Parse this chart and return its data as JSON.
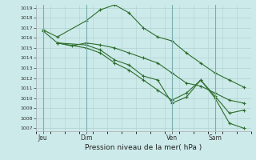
{
  "background_color": "#cdeaea",
  "grid_color": "#b0d0d0",
  "line_color": "#2d6e2d",
  "title": "Pression niveau de la mer( hPa )",
  "ylim": [
    1007,
    1019
  ],
  "yticks": [
    1007,
    1008,
    1009,
    1010,
    1011,
    1012,
    1013,
    1014,
    1015,
    1016,
    1017,
    1018,
    1019
  ],
  "xtick_labels": [
    "Jeu",
    "Dim",
    "Ven",
    "Sam"
  ],
  "xtick_positions": [
    0,
    24,
    72,
    96
  ],
  "xlim": [
    -4,
    116
  ],
  "series1_x": [
    0,
    8,
    24,
    32,
    40,
    48,
    56,
    64,
    72,
    80,
    88,
    96,
    104,
    112
  ],
  "series1_y": [
    1016.8,
    1016.1,
    1017.7,
    1018.8,
    1019.3,
    1018.5,
    1017.0,
    1016.1,
    1015.7,
    1014.5,
    1013.5,
    1012.5,
    1011.8,
    1011.1
  ],
  "series2_x": [
    0,
    8,
    16,
    24,
    32,
    40,
    48,
    56,
    64,
    72,
    80,
    88,
    96,
    104,
    112
  ],
  "series2_y": [
    1016.7,
    1015.5,
    1015.2,
    1015.5,
    1015.3,
    1015.0,
    1014.5,
    1014.0,
    1013.5,
    1012.5,
    1011.5,
    1011.2,
    1010.5,
    1009.8,
    1009.5
  ],
  "series3_x": [
    8,
    24,
    32,
    40,
    48,
    56,
    64,
    72,
    80,
    88,
    96,
    104,
    112
  ],
  "series3_y": [
    1015.5,
    1015.3,
    1014.8,
    1013.8,
    1013.3,
    1012.2,
    1011.8,
    1009.5,
    1010.1,
    1011.8,
    1010.2,
    1008.5,
    1008.8
  ],
  "series4_x": [
    8,
    24,
    32,
    40,
    48,
    56,
    64,
    72,
    80,
    88,
    96,
    104,
    112
  ],
  "series4_y": [
    1015.5,
    1015.0,
    1014.5,
    1013.5,
    1012.8,
    1011.8,
    1010.8,
    1009.8,
    1010.5,
    1011.8,
    1010.0,
    1007.5,
    1007.0
  ]
}
